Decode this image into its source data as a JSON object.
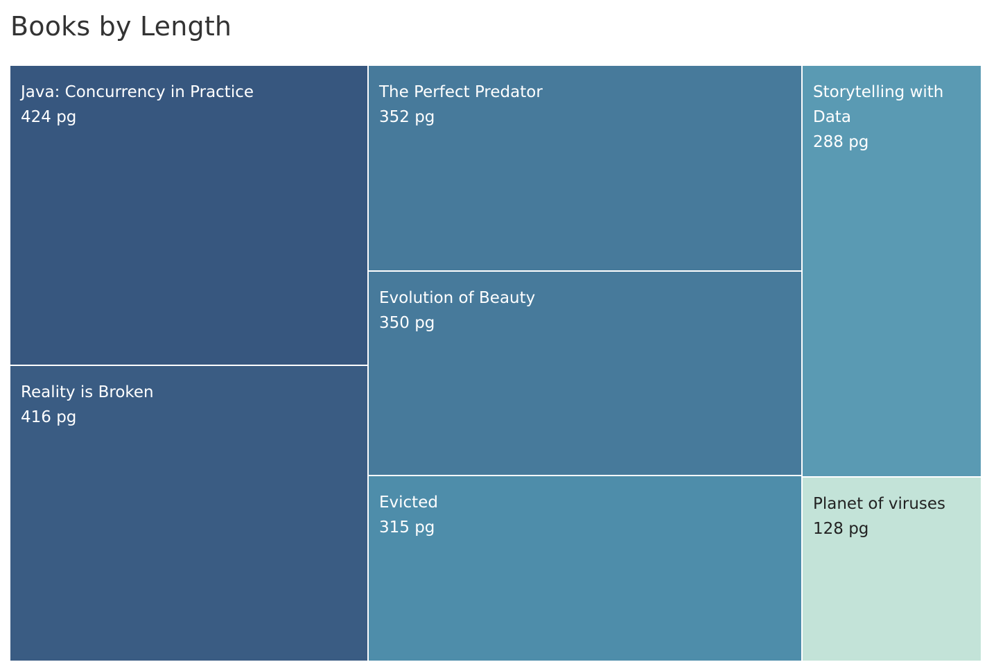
{
  "page": {
    "title": "Books by Length"
  },
  "chart_data": {
    "type": "treemap",
    "title": "Books by Length",
    "unit": "pg",
    "items": [
      {
        "name": "Java: Concurrency in Practice",
        "value": 424,
        "value_label": "424 pg",
        "color": "#37577f"
      },
      {
        "name": "Reality is Broken",
        "value": 416,
        "value_label": "416 pg",
        "color": "#3a5c83"
      },
      {
        "name": "The Perfect Predator",
        "value": 352,
        "value_label": "352 pg",
        "color": "#477a9b"
      },
      {
        "name": "Evolution of Beauty",
        "value": 350,
        "value_label": "350 pg",
        "color": "#477a9b"
      },
      {
        "name": "Evicted",
        "value": 315,
        "value_label": "315 pg",
        "color": "#4e8daa"
      },
      {
        "name": "Storytelling with Data",
        "value": 288,
        "value_label": "288 pg",
        "color": "#5a9ab3"
      },
      {
        "name": "Planet of viruses",
        "value": 128,
        "value_label": "128 pg",
        "color": "#c3e3d8"
      }
    ]
  }
}
